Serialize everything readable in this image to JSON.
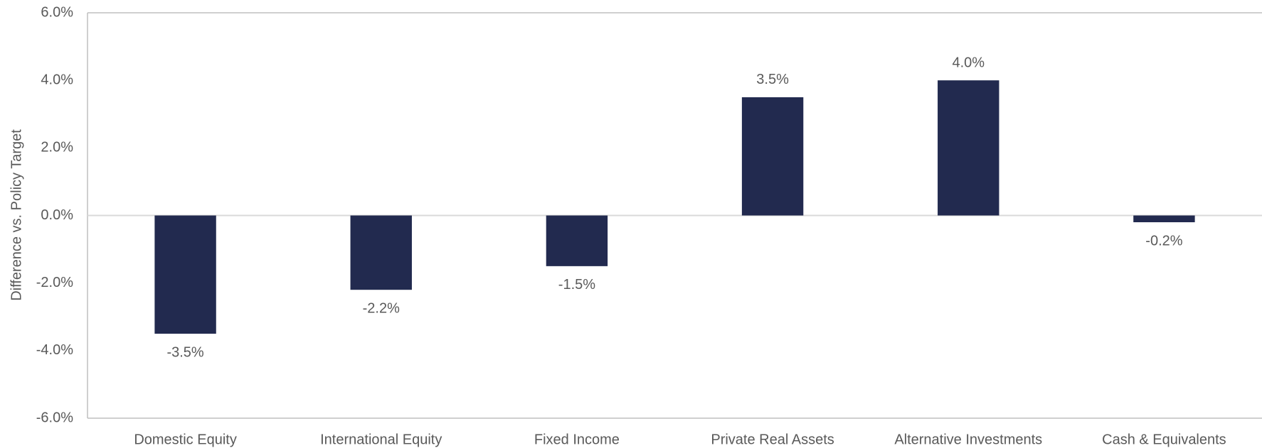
{
  "chart_data": {
    "type": "bar",
    "y_axis_label": "Difference vs. Policy Target",
    "categories": [
      "Domestic Equity",
      "International Equity",
      "Fixed Income",
      "Private Real Assets",
      "Alternative Investments",
      "Cash & Equivalents"
    ],
    "values": [
      -3.5,
      -2.2,
      -1.5,
      3.5,
      4.0,
      -0.2
    ],
    "value_labels": [
      "-3.5%",
      "-2.2%",
      "-1.5%",
      "3.5%",
      "4.0%",
      "-0.2%"
    ],
    "color": "#222a4f",
    "ylim": [
      -6,
      6
    ],
    "yticks": [
      {
        "value": -6,
        "label": "-6.0%"
      },
      {
        "value": -4,
        "label": "-4.0%"
      },
      {
        "value": -2,
        "label": "-2.0%"
      },
      {
        "value": 0,
        "label": "0.0%"
      },
      {
        "value": 2,
        "label": "2.0%"
      },
      {
        "value": 4,
        "label": "4.0%"
      },
      {
        "value": 6,
        "label": "6.0%"
      }
    ],
    "grid": false
  }
}
